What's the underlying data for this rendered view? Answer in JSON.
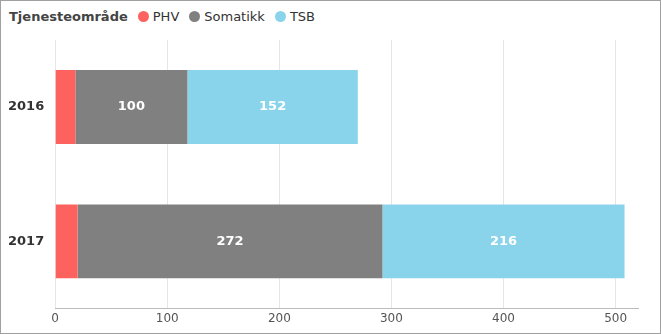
{
  "chart_data": {
    "type": "bar",
    "orientation": "horizontal",
    "stacked": true,
    "legend_title": "Tjenesteområde",
    "legend": "top-left",
    "categories": [
      "2016",
      "2017"
    ],
    "series": [
      {
        "name": "PHV",
        "color": "#fd625e",
        "values": [
          18,
          20
        ],
        "data_labels": false
      },
      {
        "name": "Somatikk",
        "color": "#808080",
        "values": [
          100,
          272
        ],
        "data_labels": true
      },
      {
        "name": "TSB",
        "color": "#8ad4eb",
        "values": [
          152,
          216
        ],
        "data_labels": true
      }
    ],
    "xlim": [
      0,
      520
    ],
    "xticks": [
      0,
      100,
      200,
      300,
      400,
      500
    ],
    "grid": true
  }
}
